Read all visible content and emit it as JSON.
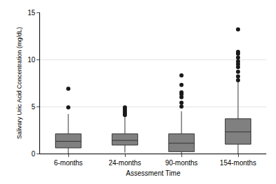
{
  "chart_data": {
    "type": "box",
    "x_label": "Assessment Time",
    "y_label": "Salivary Uric Acid Concentration (mg/dL)",
    "categories": [
      "6-months",
      "24-months",
      "90-months",
      "154-months"
    ],
    "boxes": [
      {
        "whisker_low": 0,
        "q1": 0.6,
        "median": 1.3,
        "q3": 2.1,
        "whisker_high": 4.2,
        "outliers": [
          4.9,
          6.9
        ]
      },
      {
        "whisker_low": 0.1,
        "q1": 0.9,
        "median": 1.4,
        "q3": 2.1,
        "whisker_high": 3.9,
        "outliers": [
          4.1,
          4.3,
          4.5,
          4.7,
          4.9
        ]
      },
      {
        "whisker_low": 0,
        "q1": 0.2,
        "median": 1.1,
        "q3": 2.1,
        "whisker_high": 4.5,
        "outliers": [
          5.0,
          5.4,
          6.0,
          6.3,
          6.5,
          7.3,
          8.3
        ]
      },
      {
        "whisker_low": 0,
        "q1": 1.0,
        "median": 2.3,
        "q3": 3.7,
        "whisker_high": 7.6,
        "outliers": [
          7.8,
          8.2,
          8.7,
          9.2,
          9.5,
          9.8,
          10.2,
          10.6,
          10.8,
          13.2
        ]
      }
    ],
    "color": "#808080",
    "marker": "circle",
    "ylim": [
      0,
      15
    ],
    "yticks": [
      0,
      5,
      10,
      15
    ],
    "grid": true
  }
}
